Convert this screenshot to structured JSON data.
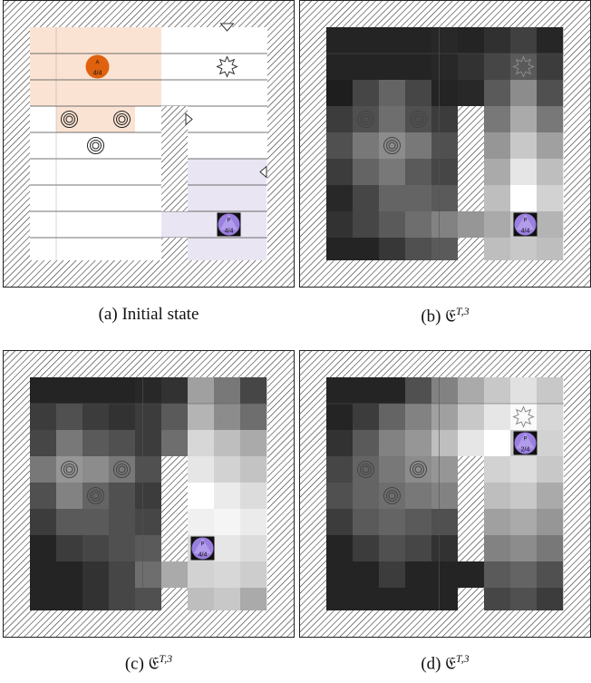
{
  "hatch_color": "#333333",
  "panels": [
    {
      "id": "a",
      "caption_prefix": "(a)",
      "caption_text": "Initial state",
      "caption_math": "",
      "caption_sup": "",
      "kind": "initial",
      "agents": [
        {
          "label_top": "A",
          "label_bottom": "4/4",
          "color": "#e0620e",
          "shape": "circle"
        },
        {
          "label_top": "P",
          "label_bottom": "4/4",
          "color": "#9a7fe0",
          "shape": "triangle"
        }
      ],
      "colors": {
        "agent_region": "#fbe3d3",
        "goal_region": "#e9e5f2"
      }
    },
    {
      "id": "b",
      "caption_prefix": "(b)",
      "caption_text": "",
      "caption_math": "𝔈",
      "caption_sup": "T,3",
      "kind": "heat",
      "agents": [
        {
          "label_top": "P",
          "label_bottom": "4/4",
          "color": "#9a7fe0",
          "shape": "triangle"
        }
      ]
    },
    {
      "id": "c",
      "caption_prefix": "(c)",
      "caption_text": "",
      "caption_math": "𝔈",
      "caption_sup": "T,3",
      "kind": "heat",
      "agents": [
        {
          "label_top": "P",
          "label_bottom": "4/4",
          "color": "#9a7fe0",
          "shape": "triangle"
        }
      ]
    },
    {
      "id": "d",
      "caption_prefix": "(d)",
      "caption_text": "",
      "caption_math": "𝔈",
      "caption_sup": "T,3",
      "kind": "heat",
      "agents": [
        {
          "label_top": "P",
          "label_bottom": "2/4",
          "color": "#9a7fe0",
          "shape": "triangle"
        }
      ]
    }
  ]
}
